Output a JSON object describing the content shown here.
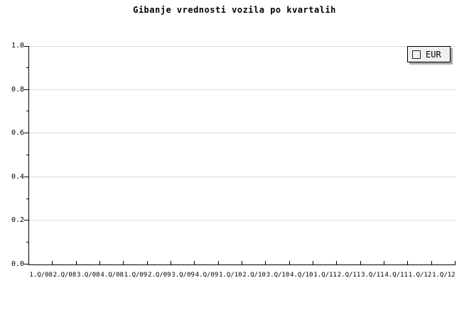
{
  "chart_data": {
    "type": "line",
    "title": "Gibanje vrednosti vozila po kvartalih",
    "categories": [
      "1.Q/08",
      "2.Q/08",
      "3.Q/08",
      "4.Q/08",
      "1.Q/09",
      "2.Q/09",
      "3.Q/09",
      "4.Q/09",
      "1.Q/10",
      "2.Q/10",
      "3.Q/10",
      "4.Q/10",
      "1.Q/11",
      "2.Q/11",
      "3.Q/11",
      "4.Q/11",
      "1.Q/12",
      "1.Q/12"
    ],
    "series": [
      {
        "name": "EUR",
        "color": "#f9c86e",
        "values": []
      }
    ],
    "xlabel": "",
    "ylabel": "",
    "ylim": [
      0.0,
      1.0
    ],
    "ytick_labels": [
      "0.0",
      "0.2",
      "0.4",
      "0.6",
      "0.8",
      "1.0"
    ],
    "ytick_minor_step": 0.1,
    "grid": "horizontal-major",
    "legend_position": "top-right"
  },
  "legend": {
    "items": [
      {
        "label": "EUR",
        "swatch_color": "#f9c86e"
      }
    ]
  },
  "colors": {
    "background": "#ffffff",
    "axis": "#000000",
    "gridline": "#dcdcdc",
    "legend_bg": "#f0f0f0",
    "legend_border": "#000000",
    "legend_shadow": "#a8a8a8",
    "swatch_fill": "#f9c86e",
    "swatch_border": "#222222"
  }
}
